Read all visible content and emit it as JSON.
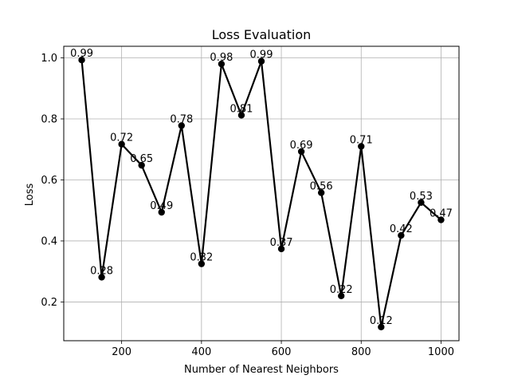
{
  "chart_data": {
    "type": "line",
    "title": "Loss Evaluation",
    "xlabel": "Number of Nearest Neighbors",
    "ylabel": "Loss",
    "x": [
      100,
      150,
      200,
      250,
      300,
      350,
      400,
      450,
      500,
      550,
      600,
      650,
      700,
      750,
      800,
      850,
      900,
      950,
      1000
    ],
    "series": [
      {
        "values": [
          0.993,
          0.281,
          0.717,
          0.648,
          0.494,
          0.778,
          0.325,
          0.98,
          0.812,
          0.989,
          0.374,
          0.693,
          0.558,
          0.22,
          0.71,
          0.118,
          0.418,
          0.526,
          0.469
        ],
        "labels": [
          "0.99",
          "0.28",
          "0.72",
          "0.65",
          "0.49",
          "0.78",
          "0.32",
          "0.98",
          "0.81",
          "0.99",
          "0.37",
          "0.69",
          "0.56",
          "0.22",
          "0.71",
          "0.12",
          "0.42",
          "0.53",
          "0.47"
        ],
        "color": "#000000"
      }
    ],
    "xlim": [
      55,
      1045
    ],
    "ylim": [
      0.073,
      1.038
    ],
    "xticks": [
      200,
      400,
      600,
      800,
      1000
    ],
    "xtick_labels": [
      "200",
      "400",
      "600",
      "800",
      "1000"
    ],
    "yticks": [
      0.2,
      0.4,
      0.6,
      0.8,
      1.0
    ],
    "ytick_labels": [
      "0.2",
      "0.4",
      "0.6",
      "0.8",
      "1.0"
    ],
    "grid": true,
    "grid_color": "#b0b0b0"
  }
}
